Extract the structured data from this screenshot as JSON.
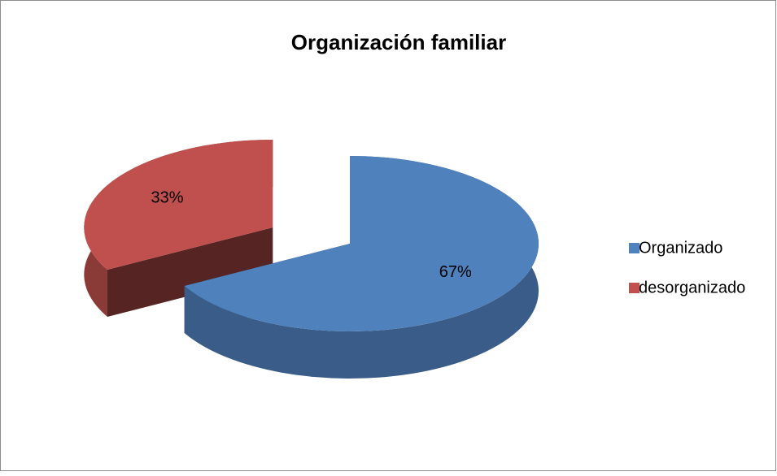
{
  "chart_data": {
    "type": "pie",
    "title": "Organización familiar",
    "categories": [
      "Organizado",
      "desorganizado"
    ],
    "values": [
      67,
      33
    ],
    "value_labels": [
      "67%",
      "33%"
    ],
    "colors": [
      "#4f81bd",
      "#c0504d"
    ],
    "legend": "right"
  }
}
